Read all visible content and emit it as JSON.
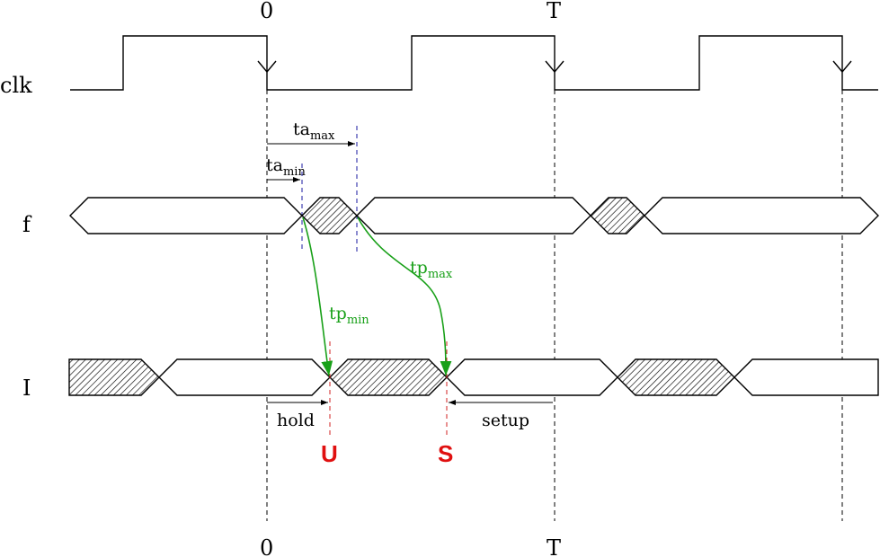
{
  "signals": {
    "clk": "clk",
    "f": "f",
    "I": "I"
  },
  "time_labels": {
    "zero": "0",
    "period": "T"
  },
  "annotations": {
    "ta_max_base": "ta",
    "ta_max_sub": "max",
    "ta_min_base": "ta",
    "ta_min_sub": "min",
    "tp_max_base": "tp",
    "tp_max_sub": "max",
    "tp_min_base": "tp",
    "tp_min_sub": "min",
    "hold": "hold",
    "setup": "setup"
  },
  "markers": {
    "u": "U",
    "s": "S"
  },
  "colors": {
    "propagation": "#18a018",
    "marker": "#e01010",
    "access_guide": "#1a1aa0"
  }
}
